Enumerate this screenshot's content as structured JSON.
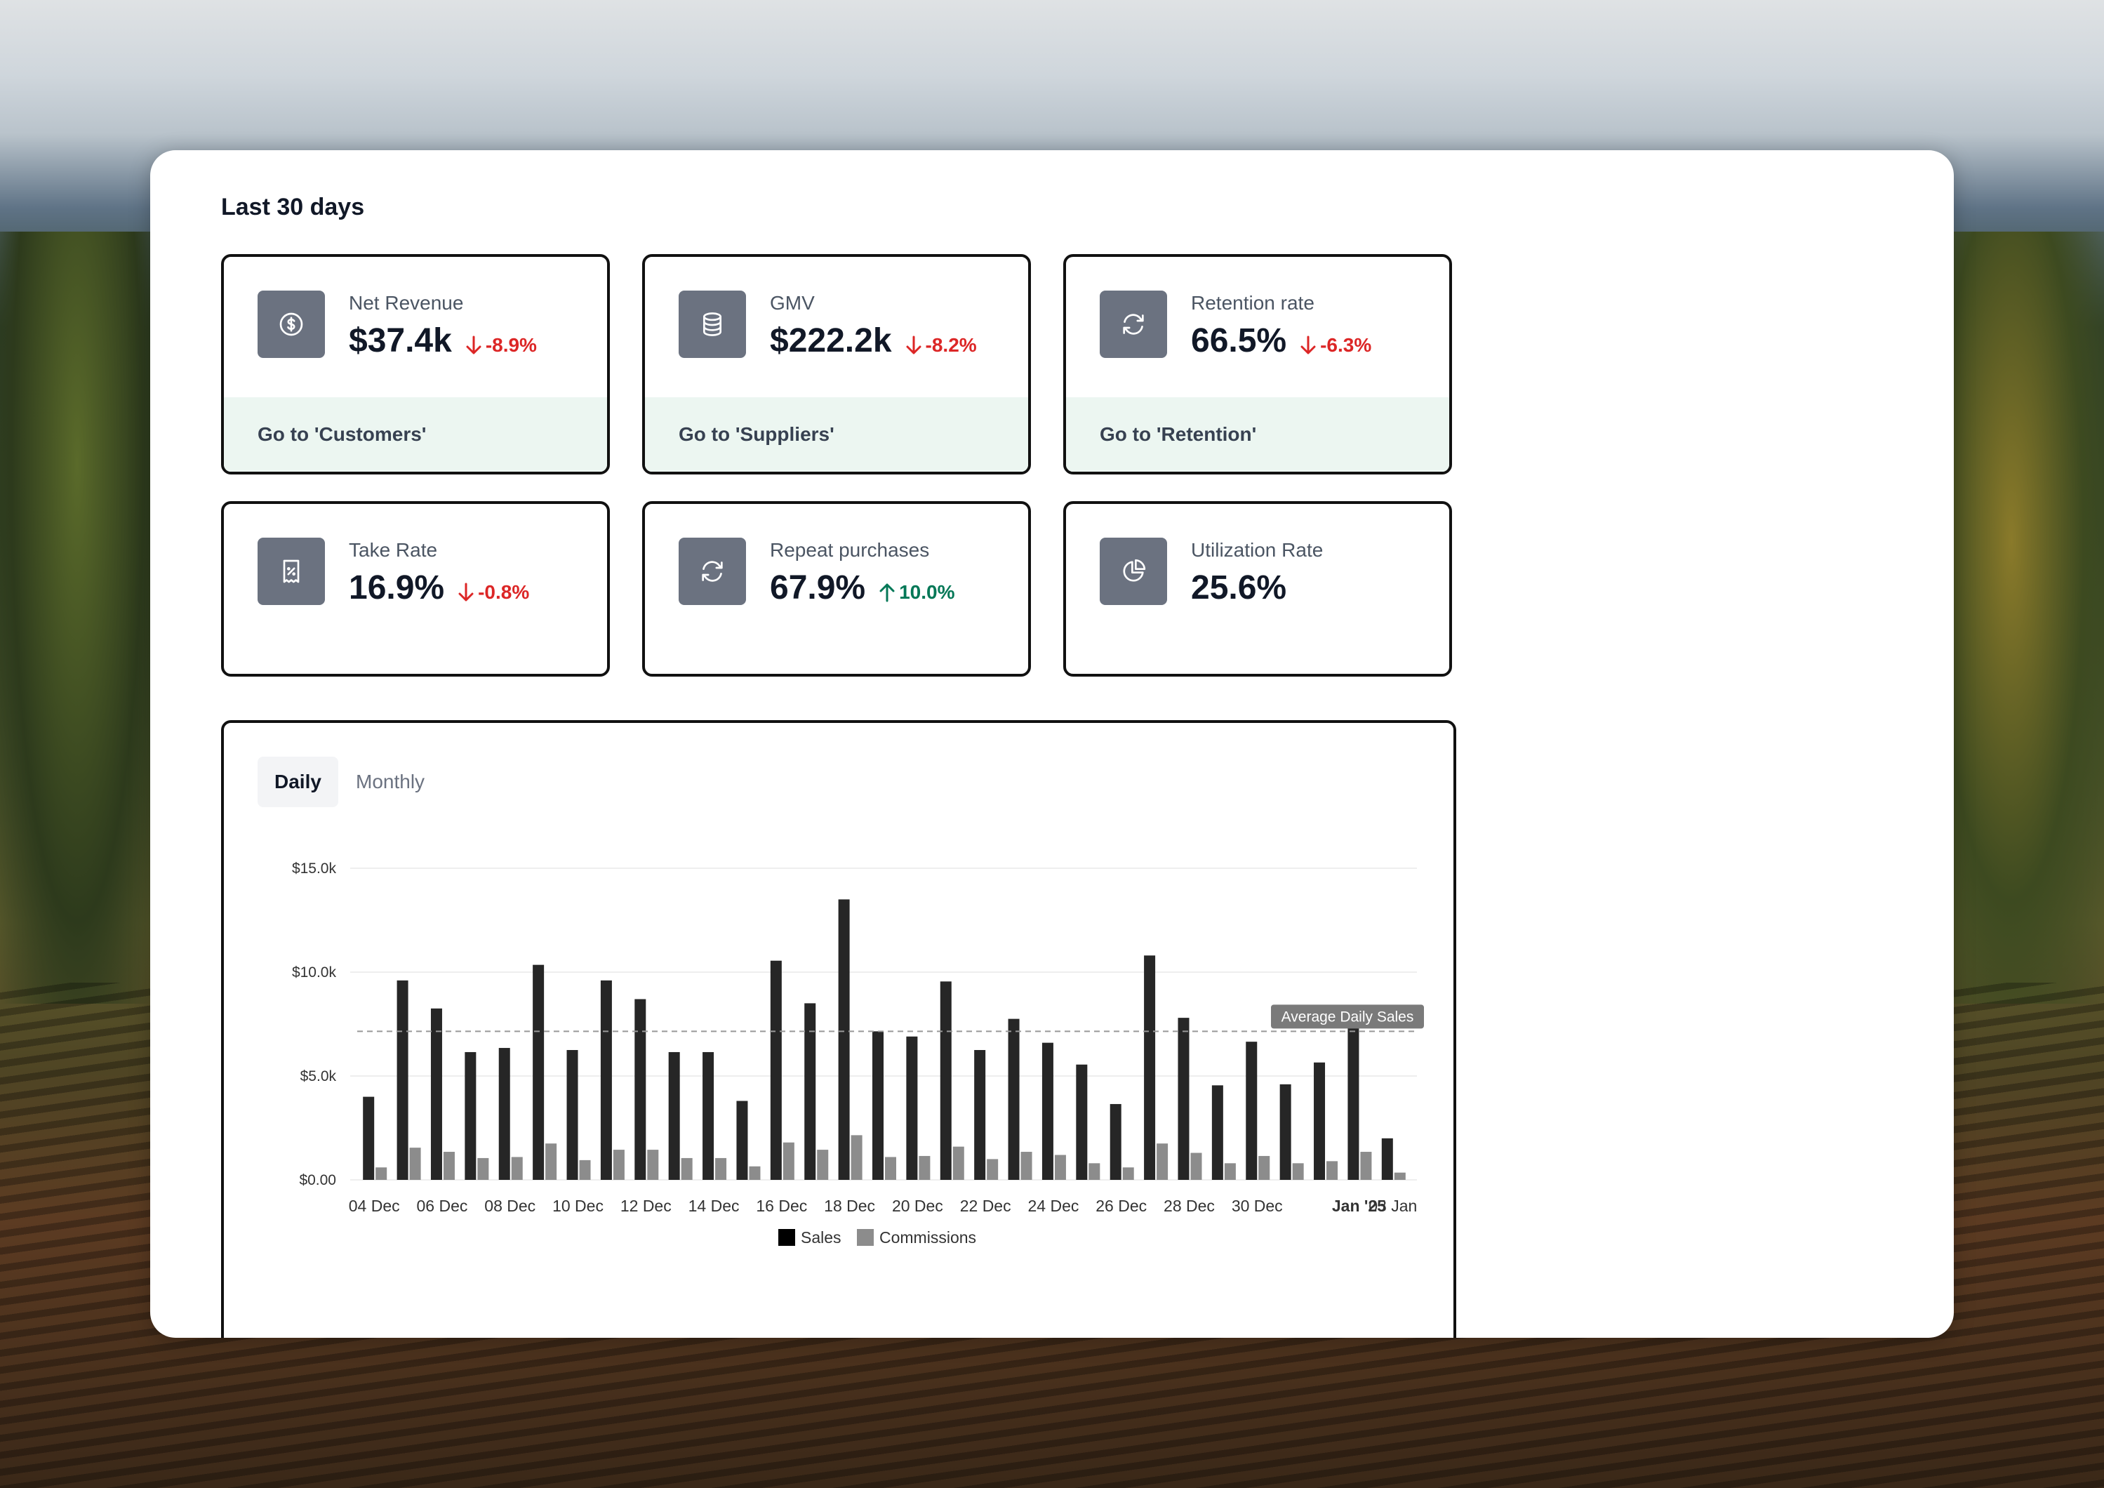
{
  "section_title": "Last 30 days",
  "colors": {
    "delta_down": "#dc2626",
    "delta_up": "#047857",
    "icon_bg": "#6b7280",
    "footer_bg": "#ecf6f1",
    "sales": "#262626",
    "commissions": "#8c8c8c"
  },
  "kpis": [
    {
      "label": "Net Revenue",
      "value": "$37.4k",
      "delta": "-8.9%",
      "direction": "down",
      "icon": "dollar-circle-icon",
      "footer": "Go to 'Customers'"
    },
    {
      "label": "GMV",
      "value": "$222.2k",
      "delta": "-8.2%",
      "direction": "down",
      "icon": "database-icon",
      "footer": "Go to 'Suppliers'"
    },
    {
      "label": "Retention rate",
      "value": "66.5%",
      "delta": "-6.3%",
      "direction": "down",
      "icon": "refresh-icon",
      "footer": "Go to 'Retention'"
    },
    {
      "label": "Take Rate",
      "value": "16.9%",
      "delta": "-0.8%",
      "direction": "down",
      "icon": "receipt-percent-icon"
    },
    {
      "label": "Repeat purchases",
      "value": "67.9%",
      "delta": "10.0%",
      "direction": "up",
      "icon": "refresh-icon"
    },
    {
      "label": "Utilization Rate",
      "value": "25.6%",
      "icon": "pie-chart-icon"
    }
  ],
  "tabs": [
    {
      "label": "Daily",
      "active": true
    },
    {
      "label": "Monthly",
      "active": false
    }
  ],
  "chart_data": {
    "type": "bar",
    "categories": [
      "04 Dec",
      "05 Dec",
      "06 Dec",
      "07 Dec",
      "08 Dec",
      "09 Dec",
      "10 Dec",
      "11 Dec",
      "12 Dec",
      "13 Dec",
      "14 Dec",
      "15 Dec",
      "16 Dec",
      "17 Dec",
      "18 Dec",
      "19 Dec",
      "20 Dec",
      "21 Dec",
      "22 Dec",
      "23 Dec",
      "24 Dec",
      "25 Dec",
      "26 Dec",
      "27 Dec",
      "28 Dec",
      "29 Dec",
      "30 Dec",
      "31 Dec",
      "Jan '25",
      "02 Jan",
      "03 Jan"
    ],
    "x_tick_labels": [
      "04 Dec",
      "06 Dec",
      "08 Dec",
      "10 Dec",
      "12 Dec",
      "14 Dec",
      "16 Dec",
      "18 Dec",
      "20 Dec",
      "22 Dec",
      "24 Dec",
      "26 Dec",
      "28 Dec",
      "30 Dec",
      "Jan '25",
      "03 Jan"
    ],
    "bold_tick": "Jan '25",
    "series": [
      {
        "name": "Sales",
        "values": [
          4000,
          9600,
          8250,
          6150,
          6350,
          10350,
          6250,
          9600,
          8700,
          6150,
          6150,
          3800,
          10550,
          8500,
          13500,
          7150,
          6900,
          9550,
          6250,
          7750,
          6600,
          5550,
          3650,
          10800,
          7800,
          4550,
          6650,
          4600,
          5650,
          7400,
          2000
        ]
      },
      {
        "name": "Commissions",
        "values": [
          600,
          1550,
          1350,
          1050,
          1100,
          1750,
          950,
          1450,
          1450,
          1050,
          1050,
          650,
          1800,
          1450,
          2150,
          1100,
          1150,
          1600,
          1000,
          1350,
          1200,
          800,
          600,
          1750,
          1300,
          800,
          1150,
          800,
          900,
          1350,
          350
        ]
      }
    ],
    "reference_line": {
      "label": "Average Daily Sales",
      "value": 7150
    },
    "y_ticks": [
      "$0.00",
      "$5.0k",
      "$10.0k",
      "$15.0k"
    ],
    "ylim": [
      0,
      15000
    ],
    "legend": [
      "Sales",
      "Commissions"
    ],
    "legend_position": "bottom",
    "grid": true
  }
}
